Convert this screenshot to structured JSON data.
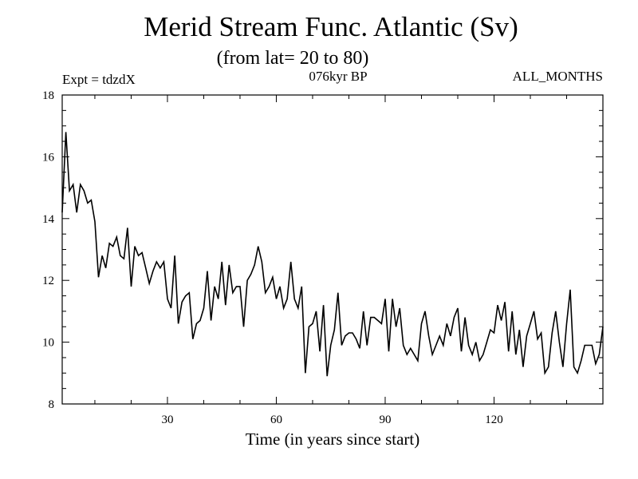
{
  "chart_data": {
    "type": "line",
    "title": "Merid Stream Func. Atlantic (Sv)",
    "subtitle": "(from lat= 20 to 80)",
    "experiment_label": "Expt = tdzdX",
    "period_label": "076kyr BP",
    "months_label": "ALL_MONTHS",
    "xlabel": "Time (in years since start)",
    "ylabel": "",
    "xlim": [
      1,
      150
    ],
    "ylim": [
      8,
      18
    ],
    "x_ticks": [
      30,
      60,
      90,
      120
    ],
    "x_tick_labels": [
      "30",
      "60",
      "90",
      "120"
    ],
    "y_ticks": [
      8,
      10,
      12,
      14,
      16,
      18
    ],
    "y_tick_labels": [
      "8",
      "10",
      "12",
      "14",
      "16",
      "18"
    ],
    "grid": false,
    "series": [
      {
        "name": "Merid Stream Func. Atlantic",
        "color": "#000000",
        "x": [
          1,
          2,
          3,
          4,
          5,
          6,
          7,
          8,
          9,
          10,
          11,
          12,
          13,
          14,
          15,
          16,
          17,
          18,
          19,
          20,
          21,
          22,
          23,
          24,
          25,
          26,
          27,
          28,
          29,
          30,
          31,
          32,
          33,
          34,
          35,
          36,
          37,
          38,
          39,
          40,
          41,
          42,
          43,
          44,
          45,
          46,
          47,
          48,
          49,
          50,
          51,
          52,
          53,
          54,
          55,
          56,
          57,
          58,
          59,
          60,
          61,
          62,
          63,
          64,
          65,
          66,
          67,
          68,
          69,
          70,
          71,
          72,
          73,
          74,
          75,
          76,
          77,
          78,
          79,
          80,
          81,
          82,
          83,
          84,
          85,
          86,
          87,
          88,
          89,
          90,
          91,
          92,
          93,
          94,
          95,
          96,
          97,
          98,
          99,
          100,
          101,
          102,
          103,
          104,
          105,
          106,
          107,
          108,
          109,
          110,
          111,
          112,
          113,
          114,
          115,
          116,
          117,
          118,
          119,
          120,
          121,
          122,
          123,
          124,
          125,
          126,
          127,
          128,
          129,
          130,
          131,
          132,
          133,
          134,
          135,
          136,
          137,
          138,
          139,
          140,
          141,
          142,
          143,
          144,
          145,
          146,
          147,
          148,
          149,
          150
        ],
        "values": [
          14.2,
          16.8,
          14.9,
          15.1,
          14.2,
          15.1,
          14.9,
          14.5,
          14.6,
          13.9,
          12.1,
          12.8,
          12.4,
          13.2,
          13.1,
          13.4,
          12.8,
          12.7,
          13.7,
          11.8,
          13.1,
          12.8,
          12.9,
          12.4,
          11.9,
          12.3,
          12.6,
          12.4,
          12.6,
          11.4,
          11.1,
          12.8,
          10.6,
          11.3,
          11.5,
          11.6,
          10.1,
          10.6,
          10.7,
          11.1,
          12.3,
          10.7,
          11.8,
          11.4,
          12.6,
          11.2,
          12.5,
          11.6,
          11.8,
          11.8,
          10.5,
          12.0,
          12.2,
          12.5,
          13.1,
          12.6,
          11.6,
          11.8,
          12.1,
          11.4,
          11.8,
          11.1,
          11.4,
          12.6,
          11.4,
          11.1,
          11.8,
          9.0,
          10.5,
          10.6,
          11.0,
          9.7,
          11.2,
          8.9,
          9.9,
          10.4,
          11.6,
          9.9,
          10.2,
          10.3,
          10.3,
          10.1,
          9.8,
          11.0,
          9.9,
          10.8,
          10.8,
          10.7,
          10.6,
          11.4,
          9.7,
          11.4,
          10.5,
          11.1,
          9.9,
          9.6,
          9.8,
          9.6,
          9.4,
          10.6,
          11.0,
          10.2,
          9.6,
          9.9,
          10.2,
          9.9,
          10.6,
          10.2,
          10.8,
          11.1,
          9.7,
          10.8,
          9.9,
          9.6,
          10.0,
          9.4,
          9.6,
          10.0,
          10.4,
          10.3,
          11.2,
          10.7,
          11.3,
          9.7,
          11.0,
          9.6,
          10.4,
          9.2,
          10.2,
          10.6,
          11.0,
          10.1,
          10.3,
          9.0,
          9.2,
          10.3,
          11.0,
          10.0,
          9.2,
          10.6,
          11.7,
          9.2,
          9.0,
          9.4,
          9.9,
          9.9,
          9.9,
          9.3,
          9.6,
          10.5
        ]
      }
    ]
  }
}
